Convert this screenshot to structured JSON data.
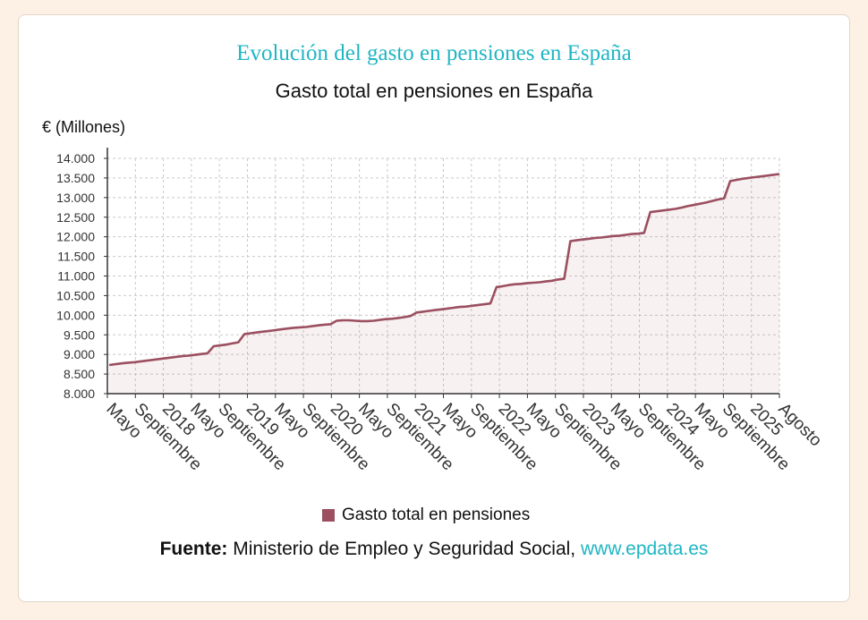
{
  "header": {
    "headline": "Evolución del gasto en pensiones en España"
  },
  "chart_data": {
    "type": "line",
    "title": "Gasto total en pensiones en España",
    "ylabel": "€ (Millones)",
    "xlabel": "",
    "ylim": [
      8000,
      14000
    ],
    "yticks": [
      "8.000",
      "8.500",
      "9.000",
      "9.500",
      "10.000",
      "10.500",
      "11.000",
      "11.500",
      "12.000",
      "12.500",
      "13.000",
      "13.500",
      "14.000"
    ],
    "yvalues": [
      8000,
      8500,
      9000,
      9500,
      10000,
      10500,
      11000,
      11500,
      12000,
      12500,
      13000,
      13500,
      14000
    ],
    "xticks": [
      "Mayo",
      "Septiembre",
      "2018",
      "Mayo",
      "Septiembre",
      "2019",
      "Mayo",
      "Septiembre",
      "2020",
      "Mayo",
      "Septiembre",
      "2021",
      "Mayo",
      "Septiembre",
      "2022",
      "Mayo",
      "Septiembre",
      "2023",
      "Mayo",
      "Septiembre",
      "2024",
      "Mayo",
      "Septiembre",
      "2025",
      "Agosto"
    ],
    "x_start": "2017-05",
    "x_end": "2025-08",
    "grid": true,
    "series": [
      {
        "name": "Gasto total en pensiones",
        "color": "#9b4f5f",
        "values": [
          8730,
          8750,
          8770,
          8790,
          8800,
          8820,
          8840,
          8860,
          8880,
          8900,
          8920,
          8940,
          8960,
          8970,
          8990,
          9010,
          9030,
          9210,
          9230,
          9250,
          9280,
          9310,
          9520,
          9540,
          9560,
          9580,
          9600,
          9620,
          9640,
          9660,
          9680,
          9690,
          9700,
          9720,
          9740,
          9760,
          9770,
          9860,
          9870,
          9870,
          9860,
          9850,
          9850,
          9860,
          9880,
          9900,
          9910,
          9930,
          9950,
          9980,
          10070,
          10090,
          10110,
          10130,
          10150,
          10170,
          10190,
          10210,
          10220,
          10240,
          10260,
          10280,
          10300,
          10720,
          10740,
          10770,
          10790,
          10800,
          10820,
          10830,
          10840,
          10860,
          10880,
          10910,
          10930,
          11890,
          11910,
          11930,
          11950,
          11970,
          11980,
          12000,
          12020,
          12030,
          12050,
          12070,
          12080,
          12100,
          12630,
          12650,
          12670,
          12690,
          12710,
          12740,
          12780,
          12810,
          12840,
          12870,
          12910,
          12950,
          12980,
          13420,
          13450,
          13480,
          13500,
          13520,
          13540,
          13560,
          13580,
          13600
        ]
      }
    ]
  },
  "legend": {
    "label": "Gasto total en pensiones"
  },
  "source": {
    "label": "Fuente:",
    "text": "Ministerio de Empleo y Seguridad Social,",
    "link": "www.epdata.es"
  }
}
